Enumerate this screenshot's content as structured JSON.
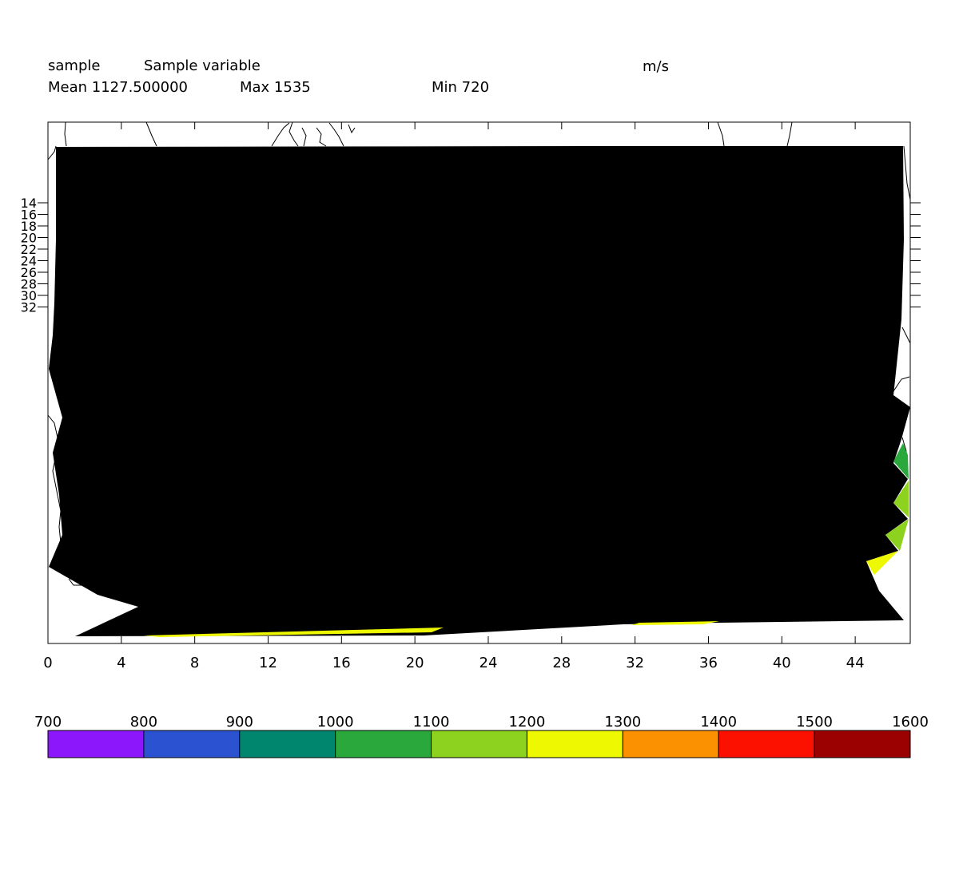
{
  "header": {
    "name": "sample",
    "long_name": "Sample variable",
    "units": "m/s",
    "mean_label": "Mean 1127.500000",
    "max_label": "Max 1535",
    "min_label": "Min 720"
  },
  "chart_data": {
    "type": "heatmap",
    "title": "Sample variable",
    "units": "m/s",
    "x_ticks": [
      0,
      4,
      8,
      12,
      16,
      20,
      24,
      28,
      32,
      36,
      40,
      44
    ],
    "xlim": [
      0,
      47
    ],
    "y_ticks": [
      14,
      16,
      18,
      20,
      22,
      24,
      26,
      28,
      30,
      32
    ],
    "stats": {
      "mean": 1127.5,
      "max": 1535,
      "min": 720
    },
    "fill_color_dominant": "#000000",
    "colorbar": {
      "boundaries": [
        700,
        800,
        900,
        1000,
        1100,
        1200,
        1300,
        1400,
        1500,
        1600
      ],
      "colors": [
        "#8c17fa",
        "#2b52d1",
        "#00866e",
        "#2aa83b",
        "#8dd21f",
        "#eef800",
        "#fb9101",
        "#fc1000",
        "#9a0100"
      ]
    }
  }
}
